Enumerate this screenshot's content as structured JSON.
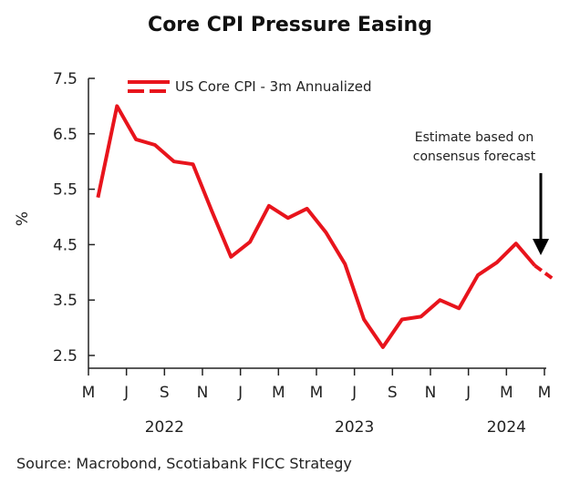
{
  "title": "Core CPI Pressure Easing",
  "source": "Source: Macrobond, Scotiabank FICC Strategy",
  "colors": {
    "series": "#e8141c",
    "axis": "#222222",
    "arrow": "#000000"
  },
  "chart_data": {
    "type": "line",
    "ylabel": "%",
    "xlabel": "",
    "ylim": [
      2.5,
      7.5
    ],
    "yticks": [
      "7.5",
      "6.5",
      "5.5",
      "4.5",
      "3.5",
      "2.5"
    ],
    "ytick_values": [
      7.5,
      6.5,
      5.5,
      4.5,
      3.5,
      2.5
    ],
    "xlim": [
      0,
      24
    ],
    "xticks": [
      {
        "label": "M",
        "x": 0
      },
      {
        "label": "J",
        "x": 2
      },
      {
        "label": "S",
        "x": 4
      },
      {
        "label": "N",
        "x": 6
      },
      {
        "label": "J",
        "x": 8
      },
      {
        "label": "M",
        "x": 10
      },
      {
        "label": "M",
        "x": 12
      },
      {
        "label": "J",
        "x": 14
      },
      {
        "label": "S",
        "x": 16
      },
      {
        "label": "N",
        "x": 18
      },
      {
        "label": "J",
        "x": 20
      },
      {
        "label": "M",
        "x": 22
      },
      {
        "label": "M",
        "x": 24
      }
    ],
    "years": [
      {
        "label": "2022",
        "x": 4
      },
      {
        "label": "2023",
        "x": 14
      },
      {
        "label": "2024",
        "x": 22
      }
    ],
    "legend": {
      "label": "US Core CPI - 3m Annualized",
      "position": "top-left"
    },
    "annotation": {
      "text_lines": [
        "Estimate based on",
        "consensus forecast"
      ]
    },
    "series": [
      {
        "name": "US Core CPI - 3m Annualized",
        "style": "solid",
        "x": [
          0.5,
          1.5,
          2.5,
          3.5,
          4.5,
          5.5,
          6.5,
          7.5,
          8.5,
          9.5,
          10.5,
          11.5,
          12.5,
          13.5,
          14.5,
          15.5,
          16.5,
          17.5,
          18.5,
          19.5,
          20.5,
          21.5,
          22.5,
          23.5
        ],
        "values": [
          5.35,
          7.0,
          6.4,
          6.3,
          6.0,
          5.95,
          5.1,
          4.28,
          4.55,
          5.2,
          4.98,
          5.15,
          4.72,
          4.15,
          3.15,
          2.65,
          3.15,
          3.2,
          3.5,
          3.35,
          3.95,
          4.18,
          4.52,
          4.12
        ]
      },
      {
        "name": "",
        "style": "dashed",
        "x": [
          23.5,
          24.5
        ],
        "values": [
          4.12,
          3.87
        ]
      }
    ]
  }
}
